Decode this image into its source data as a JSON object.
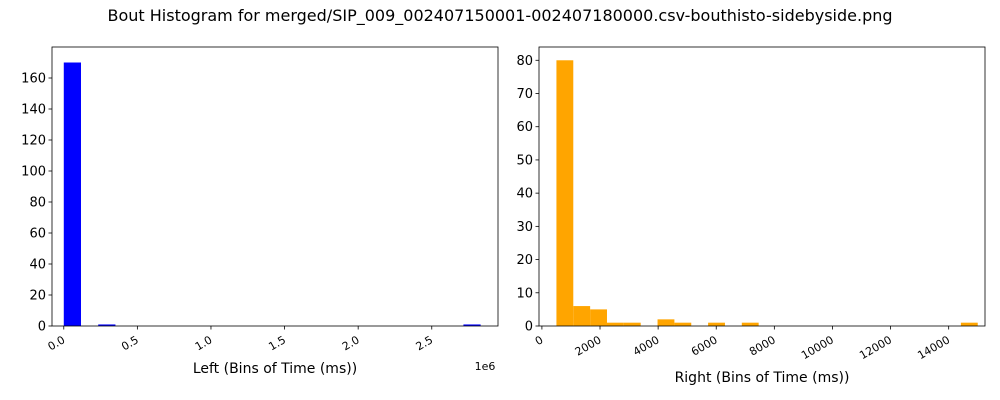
{
  "figure": {
    "title": "Bout Histogram for merged/SIP_009_002407150001-002407180000.csv-bouthisto-sidebyside.png"
  },
  "chart_data": [
    {
      "type": "bar",
      "subtype": "histogram",
      "title": "",
      "xlabel": "Left (Bins of Time (ms))",
      "ylabel": "",
      "x_offset_label": "1e6",
      "x_tick_values": [
        0,
        0.5,
        1.0,
        1.5,
        2.0,
        2.5
      ],
      "x_tick_labels": [
        "0.0",
        "0.5",
        "1.0",
        "1.5",
        "2.0",
        "2.5"
      ],
      "xlim": [
        -0.08,
        2.95
      ],
      "y_tick_values": [
        0,
        20,
        40,
        60,
        80,
        100,
        120,
        140,
        160
      ],
      "y_tick_labels": [
        "0",
        "20",
        "40",
        "60",
        "80",
        "100",
        "120",
        "140",
        "160"
      ],
      "ylim": [
        0,
        180
      ],
      "color": "#0000ff",
      "grid": false,
      "bins": [
        {
          "x0": 0.0,
          "x1": 0.117,
          "count": 170
        },
        {
          "x0": 0.234,
          "x1": 0.351,
          "count": 1
        },
        {
          "x0": 2.715,
          "x1": 2.832,
          "count": 1
        }
      ]
    },
    {
      "type": "bar",
      "subtype": "histogram",
      "title": "",
      "xlabel": "Right (Bins of Time (ms))",
      "ylabel": "",
      "x_tick_values": [
        0,
        2000,
        4000,
        6000,
        8000,
        10000,
        12000,
        14000
      ],
      "x_tick_labels": [
        "0",
        "2000",
        "4000",
        "6000",
        "8000",
        "10000",
        "12000",
        "14000"
      ],
      "xlim": [
        -100,
        15250
      ],
      "y_tick_values": [
        0,
        10,
        20,
        30,
        40,
        50,
        60,
        70,
        80
      ],
      "y_tick_labels": [
        "0",
        "10",
        "20",
        "30",
        "40",
        "50",
        "60",
        "70",
        "80"
      ],
      "ylim": [
        0,
        84
      ],
      "color": "#ffa500",
      "grid": false,
      "bins": [
        {
          "x0": 500,
          "x1": 1080,
          "count": 80
        },
        {
          "x0": 1080,
          "x1": 1660,
          "count": 6
        },
        {
          "x0": 1660,
          "x1": 2240,
          "count": 5
        },
        {
          "x0": 2240,
          "x1": 2820,
          "count": 1
        },
        {
          "x0": 2820,
          "x1": 3400,
          "count": 1
        },
        {
          "x0": 3980,
          "x1": 4560,
          "count": 2
        },
        {
          "x0": 4560,
          "x1": 5140,
          "count": 1
        },
        {
          "x0": 5720,
          "x1": 6300,
          "count": 1
        },
        {
          "x0": 6880,
          "x1": 7460,
          "count": 1
        },
        {
          "x0": 14420,
          "x1": 15000,
          "count": 1
        }
      ]
    }
  ]
}
